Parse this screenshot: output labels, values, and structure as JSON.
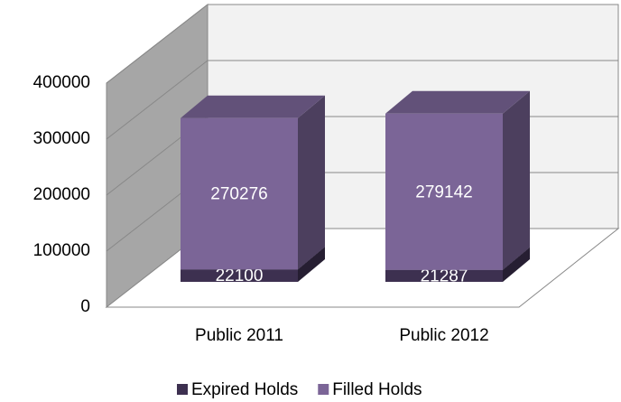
{
  "chart_data": {
    "type": "bar3d_stacked",
    "categories": [
      "Public 2011",
      "Public 2012"
    ],
    "series": [
      {
        "name": "Expired Holds",
        "color": "#3d3050",
        "values": [
          22100,
          21287
        ]
      },
      {
        "name": "Filled Holds",
        "color": "#7b6597",
        "values": [
          270276,
          279142
        ]
      }
    ],
    "ylim": [
      0,
      400000
    ],
    "yticks": [
      0,
      100000,
      200000,
      300000,
      400000
    ],
    "grid": true,
    "legend": "bottom"
  }
}
